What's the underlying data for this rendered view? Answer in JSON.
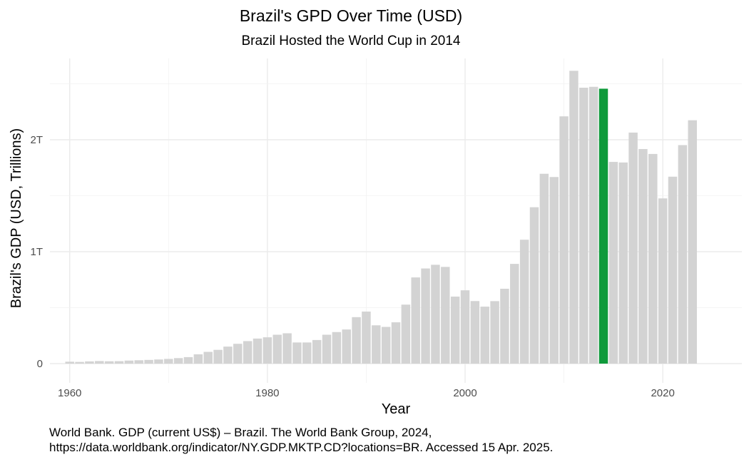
{
  "chart_data": {
    "type": "bar",
    "title": "Brazil's GPD Over Time (USD)",
    "subtitle": "Brazil Hosted the World Cup in 2014",
    "xlabel": "Year",
    "ylabel": "Brazil's GDP (USD, Trillions)",
    "x_ticks": [
      {
        "value": 1960,
        "label": "1960"
      },
      {
        "value": 1980,
        "label": "1980"
      },
      {
        "value": 2000,
        "label": "2000"
      },
      {
        "value": 2020,
        "label": "2020"
      }
    ],
    "y_ticks": [
      {
        "value": 0,
        "label": "0"
      },
      {
        "value": 1,
        "label": "1T"
      },
      {
        "value": 2,
        "label": "2T"
      }
    ],
    "xlim": [
      1958,
      2028
    ],
    "ylim": [
      0,
      2.65
    ],
    "grid": true,
    "bar_color": "#d3d3d3",
    "highlight_color": "#0f9a3b",
    "highlight_year": 2014,
    "x": [
      1960,
      1961,
      1962,
      1963,
      1964,
      1965,
      1966,
      1967,
      1968,
      1969,
      1970,
      1971,
      1972,
      1973,
      1974,
      1975,
      1976,
      1977,
      1978,
      1979,
      1980,
      1981,
      1982,
      1983,
      1984,
      1985,
      1986,
      1987,
      1988,
      1989,
      1990,
      1991,
      1992,
      1993,
      1994,
      1995,
      1996,
      1997,
      1998,
      1999,
      2000,
      2001,
      2002,
      2003,
      2004,
      2005,
      2006,
      2007,
      2008,
      2009,
      2010,
      2011,
      2012,
      2013,
      2014,
      2015,
      2016,
      2017,
      2018,
      2019,
      2020,
      2021,
      2022,
      2023
    ],
    "values": [
      0.017,
      0.015,
      0.02,
      0.023,
      0.021,
      0.022,
      0.027,
      0.03,
      0.033,
      0.037,
      0.042,
      0.049,
      0.058,
      0.083,
      0.105,
      0.123,
      0.152,
      0.177,
      0.201,
      0.224,
      0.235,
      0.258,
      0.271,
      0.189,
      0.189,
      0.211,
      0.258,
      0.282,
      0.305,
      0.415,
      0.465,
      0.342,
      0.328,
      0.369,
      0.527,
      0.77,
      0.85,
      0.883,
      0.864,
      0.599,
      0.655,
      0.559,
      0.509,
      0.558,
      0.669,
      0.891,
      1.107,
      1.397,
      1.696,
      1.667,
      2.209,
      2.616,
      2.465,
      2.473,
      2.456,
      1.802,
      1.797,
      2.064,
      1.917,
      1.873,
      1.476,
      1.67,
      1.952,
      2.174
    ]
  },
  "caption": {
    "line1": "World Bank. GDP (current US$) – Brazil. The World Bank Group, 2024,",
    "line2": "https://data.worldbank.org/indicator/NY.GDP.MKTP.CD?locations=BR. Accessed 15 Apr. 2025."
  }
}
